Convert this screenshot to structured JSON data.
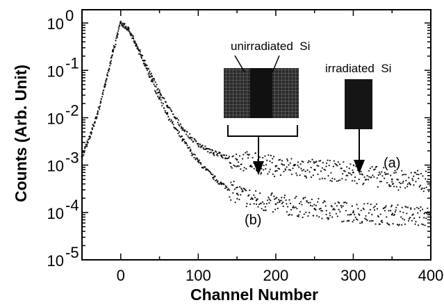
{
  "chart_data": {
    "type": "scatter",
    "title": "",
    "xlabel": "Channel Number",
    "ylabel": "Counts (Arb. Unit)",
    "xlim": [
      -50,
      400
    ],
    "ylim": [
      1e-05,
      2
    ],
    "yscale": "log",
    "grid": false,
    "x_ticks": [
      0,
      100,
      200,
      300,
      400
    ],
    "x_tick_labels": [
      "0",
      "100",
      "200",
      "300",
      "400"
    ],
    "y_ticks": [
      1,
      0.1,
      0.01,
      0.001,
      0.0001,
      1e-05
    ],
    "y_tick_bases": [
      "10",
      "10",
      "10",
      "10",
      "10",
      "10"
    ],
    "y_tick_exponents": [
      "0",
      "-1",
      "-2",
      "-3",
      "-4",
      "-5"
    ],
    "series": [
      {
        "name": "(a)",
        "points": [
          [
            -50,
            0.0015
          ],
          [
            -40,
            0.004
          ],
          [
            -30,
            0.012
          ],
          [
            -20,
            0.05
          ],
          [
            -10,
            0.25
          ],
          [
            0,
            1.0
          ],
          [
            10,
            0.75
          ],
          [
            20,
            0.35
          ],
          [
            30,
            0.16
          ],
          [
            40,
            0.075
          ],
          [
            50,
            0.035
          ],
          [
            60,
            0.018
          ],
          [
            70,
            0.01
          ],
          [
            80,
            0.006
          ],
          [
            90,
            0.0038
          ],
          [
            100,
            0.0028
          ],
          [
            110,
            0.0022
          ],
          [
            120,
            0.0018
          ],
          [
            130,
            0.0016
          ],
          [
            150,
            0.0013
          ],
          [
            175,
            0.0011
          ],
          [
            200,
            0.00095
          ],
          [
            250,
            0.0008
          ],
          [
            300,
            0.0007
          ],
          [
            350,
            0.0005
          ],
          [
            400,
            0.00045
          ]
        ]
      },
      {
        "name": "(b)",
        "points": [
          [
            -50,
            0.0015
          ],
          [
            -40,
            0.004
          ],
          [
            -30,
            0.012
          ],
          [
            -20,
            0.05
          ],
          [
            -10,
            0.25
          ],
          [
            0,
            1.0
          ],
          [
            10,
            0.75
          ],
          [
            20,
            0.33
          ],
          [
            30,
            0.14
          ],
          [
            40,
            0.06
          ],
          [
            50,
            0.026
          ],
          [
            60,
            0.012
          ],
          [
            70,
            0.006
          ],
          [
            80,
            0.0034
          ],
          [
            90,
            0.002
          ],
          [
            100,
            0.0012
          ],
          [
            110,
            0.0008
          ],
          [
            120,
            0.00055
          ],
          [
            130,
            0.0004
          ],
          [
            150,
            0.00025
          ],
          [
            175,
            0.00018
          ],
          [
            200,
            0.00015
          ],
          [
            250,
            0.00012
          ],
          [
            300,
            0.0001
          ],
          [
            350,
            9e-05
          ],
          [
            400,
            8e-05
          ]
        ]
      }
    ],
    "annotations": [
      {
        "text": "unirradiated  Si",
        "x": 185,
        "y": 0.4
      },
      {
        "text": "irradiated  Si",
        "x": 320,
        "y": 0.12
      },
      {
        "text": "(a)",
        "x": 360,
        "y": 0.00095
      },
      {
        "text": "(b)",
        "x": 183,
        "y": 6.5e-05
      }
    ]
  }
}
